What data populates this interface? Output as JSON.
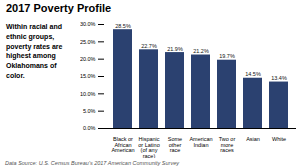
{
  "chart_data": {
    "type": "bar",
    "title": "2017 Poverty Profile",
    "annotations": [
      "Within racial and\nethnic groups,\npoverty rates are\nhighest among\nOklahomans of\ncolor.",
      "Data Source: U.S. Census Bureau’s 2017 American Community Survey"
    ],
    "categories": [
      "Black or\nAfrican\nAmerican",
      "Hispanic\nor Latino\n(of any\nrace)",
      "Some\nother\nrace",
      "American\nIndian",
      "Two or\nmore\nraces",
      "Asian",
      "White"
    ],
    "values": [
      28.5,
      22.7,
      21.9,
      21.2,
      19.7,
      14.5,
      13.4
    ],
    "value_labels": [
      "28.5%",
      "22.7%",
      "21.9%",
      "21.2%",
      "19.7%",
      "14.5%",
      "13.4%"
    ],
    "data_labels": true,
    "color": "#2B4170",
    "ylim": [
      0,
      30
    ],
    "yticks": [
      {
        "value": 0,
        "label": "0.0%"
      },
      {
        "value": 5,
        "label": "5.0%"
      },
      {
        "value": 10,
        "label": "10.0%"
      },
      {
        "value": 15,
        "label": "15.0%"
      },
      {
        "value": 20,
        "label": "20.0%"
      },
      {
        "value": 25,
        "label": "25.0%"
      },
      {
        "value": 30,
        "label": "30.0%"
      }
    ]
  }
}
